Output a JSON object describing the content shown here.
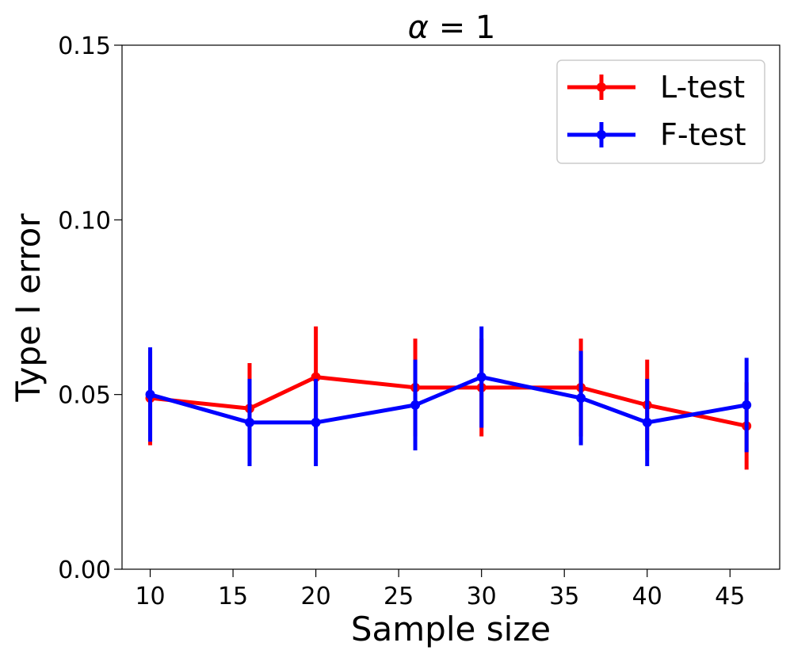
{
  "chart_data": {
    "type": "line",
    "title_symbol": "α",
    "title_rest": " = 1",
    "xlabel": "Sample size",
    "ylabel": "Type I error",
    "x": [
      10,
      16,
      20,
      26,
      30,
      36,
      40,
      46
    ],
    "xticks": [
      10,
      15,
      20,
      25,
      30,
      35,
      40,
      45
    ],
    "xtick_labels": [
      "10",
      "15",
      "20",
      "25",
      "30",
      "35",
      "40",
      "45"
    ],
    "xlim": [
      8.3,
      48.0
    ],
    "ylim": [
      0.0,
      0.15
    ],
    "yticks": [
      0.0,
      0.05,
      0.1,
      0.15
    ],
    "ytick_labels": [
      "0.00",
      "0.05",
      "0.10",
      "0.15"
    ],
    "grid": false,
    "legend_position": "top-right",
    "series": [
      {
        "name": "L-test",
        "color": "#ff0000",
        "values": [
          0.049,
          0.046,
          0.055,
          0.052,
          0.052,
          0.052,
          0.047,
          0.041
        ],
        "errors": [
          0.0135,
          0.013,
          0.0145,
          0.014,
          0.014,
          0.014,
          0.013,
          0.0125
        ]
      },
      {
        "name": "F-test",
        "color": "#0000ff",
        "values": [
          0.05,
          0.042,
          0.042,
          0.047,
          0.055,
          0.049,
          0.042,
          0.047
        ],
        "errors": [
          0.0135,
          0.0125,
          0.0125,
          0.013,
          0.0145,
          0.0135,
          0.0125,
          0.0135
        ]
      }
    ]
  }
}
